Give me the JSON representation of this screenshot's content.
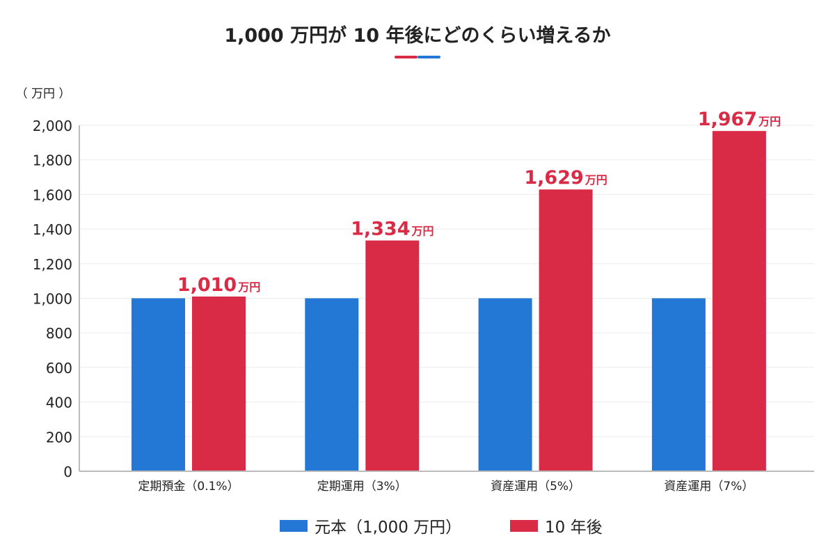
{
  "chart_data": {
    "type": "bar",
    "title": "1,000 万円が 10 年後にどのくらい増えるか",
    "ylabel": "（ 万円 ）",
    "xlabel": "",
    "ylim": [
      0,
      2000
    ],
    "yticks": [
      "0",
      "200",
      "400",
      "600",
      "800",
      "1,000",
      "1,200",
      "1,400",
      "1,600",
      "1,800",
      "2,000"
    ],
    "ytick_values": [
      0,
      200,
      400,
      600,
      800,
      1000,
      1200,
      1400,
      1600,
      1800,
      2000
    ],
    "grid": true,
    "legend_position": "bottom",
    "categories": [
      "定期預金（0.1%）",
      "定期運用（3%）",
      "資産運用（5%）",
      "資産運用（7%）"
    ],
    "series": [
      {
        "name": "元本（1,000 万円）",
        "color": "#2278d4",
        "values": [
          1000,
          1000,
          1000,
          1000
        ]
      },
      {
        "name": "10 年後",
        "color": "#d92b45",
        "values": [
          1010,
          1334,
          1629,
          1967
        ],
        "data_labels": [
          "1,010",
          "1,334",
          "1,629",
          "1,967"
        ],
        "data_label_unit": "万円"
      }
    ]
  }
}
